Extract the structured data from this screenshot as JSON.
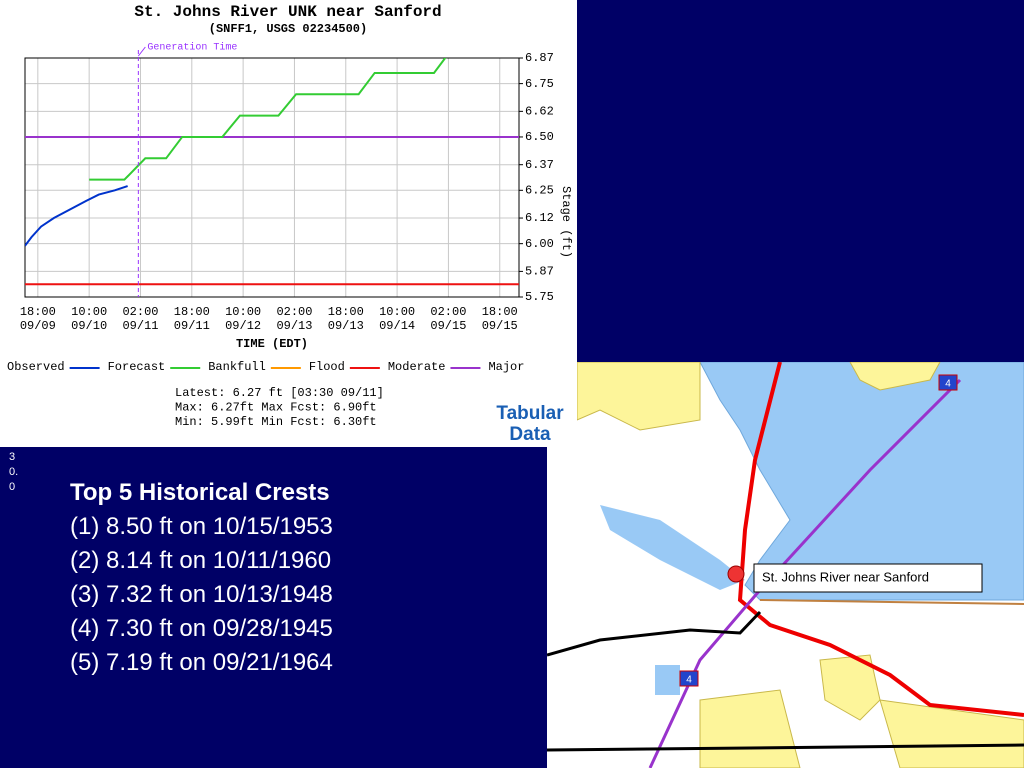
{
  "chart_data": {
    "type": "line",
    "title": "St. Johns River UNK near Sanford",
    "subtitle": "(SNFF1, USGS 02234500)",
    "x_label": "TIME (EDT)",
    "y_label": "Stage (ft)",
    "xlim": [
      "09/09 14:00",
      "09/16 00:00"
    ],
    "xticks": [
      {
        "value": "09/09 18:00",
        "label": [
          "18:00",
          "09/09"
        ]
      },
      {
        "value": "09/10 10:00",
        "label": [
          "10:00",
          "09/10"
        ]
      },
      {
        "value": "09/11 02:00",
        "label": [
          "02:00",
          "09/11"
        ]
      },
      {
        "value": "09/11 18:00",
        "label": [
          "18:00",
          "09/11"
        ]
      },
      {
        "value": "09/12 10:00",
        "label": [
          "10:00",
          "09/12"
        ]
      },
      {
        "value": "09/13 02:00",
        "label": [
          "02:00",
          "09/13"
        ]
      },
      {
        "value": "09/13 18:00",
        "label": [
          "18:00",
          "09/13"
        ]
      },
      {
        "value": "09/14 10:00",
        "label": [
          "10:00",
          "09/14"
        ]
      },
      {
        "value": "09/15 02:00",
        "label": [
          "02:00",
          "09/15"
        ]
      },
      {
        "value": "09/15 18:00",
        "label": [
          "18:00",
          "09/15"
        ]
      }
    ],
    "ylim": [
      5.75,
      6.87
    ],
    "yticks": [
      5.75,
      5.87,
      {
        "value": 6.0,
        "label": "6.00"
      },
      6.12,
      6.25,
      6.37,
      {
        "value": 6.5,
        "label": "6.50"
      },
      6.62,
      6.75,
      6.87
    ],
    "grid": true,
    "series": [
      {
        "name": "Observed",
        "color": "#0033cc",
        "x": [
          "09/09 14:00",
          "09/09 16:00",
          "09/09 19:00",
          "09/09 23:00",
          "09/10 04:00",
          "09/10 09:00",
          "09/10 13:00",
          "09/10 18:00",
          "09/10 22:00"
        ],
        "values": [
          5.99,
          6.03,
          6.08,
          6.12,
          6.16,
          6.2,
          6.23,
          6.25,
          6.27
        ]
      },
      {
        "name": "Forecast",
        "color": "#33cc33",
        "x": [
          "09/10 10:00",
          "09/10 21:00",
          "09/11 03:30",
          "09/11 10:00",
          "09/11 15:00",
          "09/12 03:30",
          "09/12 09:00",
          "09/12 21:00",
          "09/13 02:30",
          "09/13 22:00",
          "09/14 03:00",
          "09/14 21:30",
          "09/15 02:30"
        ],
        "values": [
          6.3,
          6.3,
          6.4,
          6.4,
          6.5,
          6.5,
          6.6,
          6.6,
          6.7,
          6.7,
          6.8,
          6.8,
          6.9
        ]
      }
    ],
    "thresholds": [
      {
        "name": "Bankfull",
        "color": "#ff9900",
        "value": null
      },
      {
        "name": "Flood",
        "color": "#ee1111",
        "value": 5.81
      },
      {
        "name": "Moderate",
        "color": "#9933cc",
        "value": 6.5
      },
      {
        "name": "Major",
        "value": null
      }
    ],
    "annotation": {
      "label": "Generation Time",
      "x": "09/11 01:20"
    },
    "stats": [
      "Latest: 6.27 ft [03:30 09/11]",
      "Max: 6.27ft  Max Fcst: 6.90ft",
      "Min: 5.99ft  Min Fcst: 6.30ft"
    ],
    "button": [
      "Tabular",
      "Data"
    ]
  },
  "side_note": "30.0",
  "crests": {
    "title": "Top 5 Historical Crests",
    "items": [
      "(1) 8.50 ft on 10/15/1953",
      "(2) 8.14 ft on 10/11/1960",
      "(3) 7.32 ft on 10/13/1948",
      "(4) 7.30 ft on 09/28/1945",
      "(5) 7.19 ft on 09/21/1964"
    ]
  },
  "map": {
    "label": "St. Johns River near Sanford",
    "shields": [
      "4",
      "4"
    ]
  }
}
